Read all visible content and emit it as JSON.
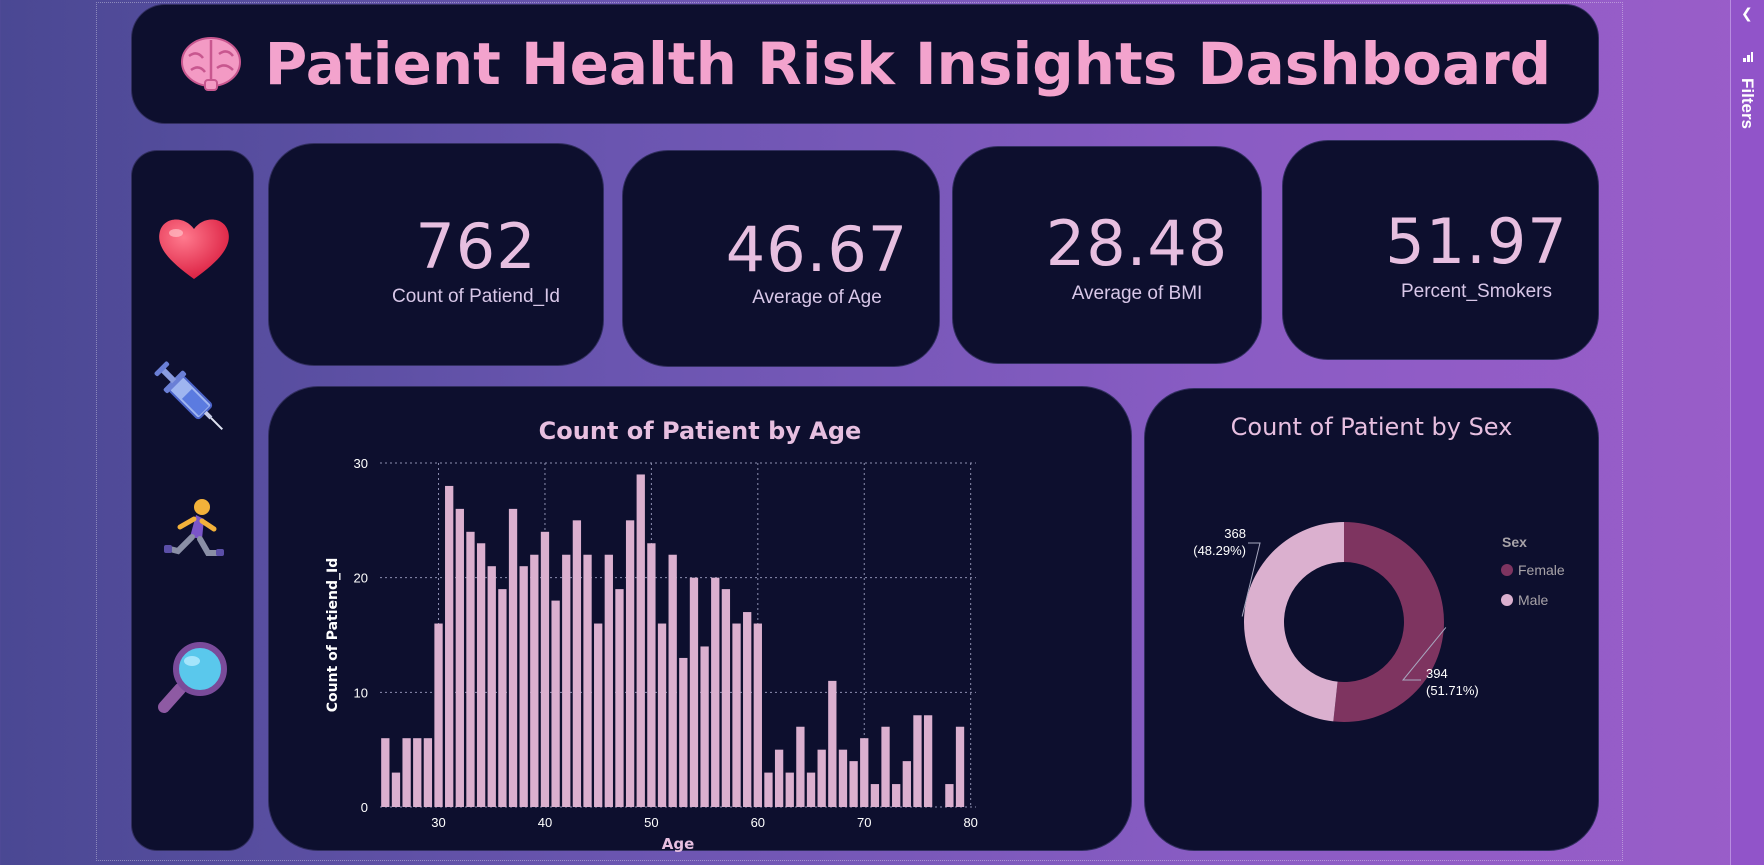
{
  "header": {
    "title": "Patient Health Risk Insights Dashboard"
  },
  "sidebar": {
    "icons": [
      "heart-icon",
      "syringe-icon",
      "runner-icon",
      "magnifier-icon"
    ]
  },
  "kpis": [
    {
      "value": "762",
      "label": "Count of Patiend_Id"
    },
    {
      "value": "46.67",
      "label": "Average of Age"
    },
    {
      "value": "28.48",
      "label": "Average of BMI"
    },
    {
      "value": "51.97",
      "label": "Percent_Smokers"
    }
  ],
  "filters": {
    "label": "Filters"
  },
  "colors": {
    "panel": "#0d0f2e",
    "pink": "#f3a3cd",
    "bar": "#dbb0cf",
    "female": "#7e3460",
    "male": "#dbb0cf"
  },
  "chart_data": [
    {
      "type": "bar",
      "title": "Count of Patient by Age",
      "xlabel": "Age",
      "ylabel": "Count of Patiend_Id",
      "xlim": [
        24.5,
        80.5
      ],
      "ylim": [
        0,
        30
      ],
      "xticks": [
        30,
        40,
        50,
        60,
        70,
        80
      ],
      "yticks": [
        0,
        10,
        20,
        30
      ],
      "grid": true,
      "x": [
        25,
        26,
        27,
        28,
        29,
        30,
        31,
        32,
        33,
        34,
        35,
        36,
        37,
        38,
        39,
        40,
        41,
        42,
        43,
        44,
        45,
        46,
        47,
        48,
        49,
        50,
        51,
        52,
        53,
        54,
        55,
        56,
        57,
        58,
        59,
        60,
        61,
        62,
        63,
        64,
        65,
        66,
        67,
        68,
        69,
        70,
        71,
        72,
        73,
        74,
        75,
        76,
        77,
        78,
        79
      ],
      "values": [
        6,
        3,
        6,
        6,
        6,
        16,
        28,
        26,
        24,
        23,
        21,
        19,
        26,
        21,
        22,
        24,
        18,
        22,
        25,
        22,
        16,
        22,
        19,
        25,
        29,
        23,
        16,
        22,
        13,
        20,
        14,
        20,
        19,
        16,
        17,
        16,
        3,
        5,
        3,
        7,
        3,
        5,
        11,
        5,
        4,
        6,
        2,
        7,
        2,
        4,
        8,
        8,
        0,
        2,
        7
      ]
    },
    {
      "type": "pie",
      "title": "Count of Patient by Sex",
      "legend_title": "Sex",
      "legend_position": "right",
      "categories": [
        "Female",
        "Male"
      ],
      "values": [
        394,
        368
      ],
      "labels": [
        {
          "value": "394",
          "pct": "(51.71%)"
        },
        {
          "value": "368",
          "pct": "(48.29%)"
        }
      ]
    }
  ]
}
